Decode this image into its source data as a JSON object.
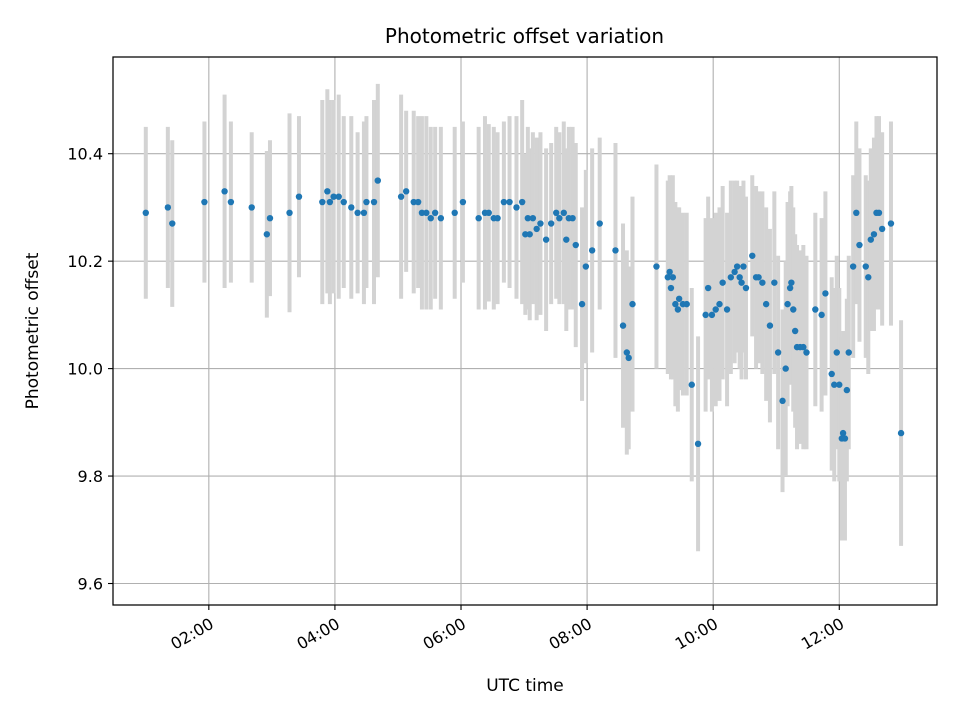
{
  "chart_data": {
    "type": "scatter",
    "title": "Photometric offset variation",
    "xlabel": "UTC time",
    "ylabel": "Photometric offset",
    "x_unit": "hours (UTC)",
    "xlim": [
      0.48,
      13.55
    ],
    "ylim": [
      9.56,
      10.58
    ],
    "x_ticks": [
      {
        "value": 2,
        "label": "02:00"
      },
      {
        "value": 4,
        "label": "04:00"
      },
      {
        "value": 6,
        "label": "06:00"
      },
      {
        "value": 8,
        "label": "08:00"
      },
      {
        "value": 10,
        "label": "10:00"
      },
      {
        "value": 12,
        "label": "12:00"
      }
    ],
    "y_ticks": [
      {
        "value": 9.6,
        "label": "9.6"
      },
      {
        "value": 9.8,
        "label": "9.8"
      },
      {
        "value": 10.0,
        "label": "10.0"
      },
      {
        "value": 10.2,
        "label": "10.2"
      },
      {
        "value": 10.4,
        "label": "10.4"
      }
    ],
    "grid": true,
    "marker_color": "#1f77b4",
    "errorbar_color": "#d3d3d3",
    "points": [
      [
        1.0,
        10.29,
        0.16
      ],
      [
        1.35,
        10.3,
        0.15
      ],
      [
        1.42,
        10.27,
        0.155
      ],
      [
        1.93,
        10.31,
        0.15
      ],
      [
        2.25,
        10.33,
        0.18
      ],
      [
        2.35,
        10.31,
        0.15
      ],
      [
        2.68,
        10.3,
        0.14
      ],
      [
        2.92,
        10.25,
        0.155
      ],
      [
        2.97,
        10.28,
        0.145
      ],
      [
        3.28,
        10.29,
        0.185
      ],
      [
        3.43,
        10.32,
        0.15
      ],
      [
        3.8,
        10.31,
        0.19
      ],
      [
        3.88,
        10.33,
        0.19
      ],
      [
        3.92,
        10.31,
        0.19
      ],
      [
        3.98,
        10.32,
        0.18
      ],
      [
        4.06,
        10.32,
        0.19
      ],
      [
        4.14,
        10.31,
        0.16
      ],
      [
        4.26,
        10.3,
        0.17
      ],
      [
        4.36,
        10.29,
        0.15
      ],
      [
        4.46,
        10.29,
        0.17
      ],
      [
        4.5,
        10.31,
        0.16
      ],
      [
        4.62,
        10.31,
        0.19
      ],
      [
        4.68,
        10.35,
        0.18
      ],
      [
        5.05,
        10.32,
        0.19
      ],
      [
        5.13,
        10.33,
        0.15
      ],
      [
        5.25,
        10.31,
        0.17
      ],
      [
        5.32,
        10.31,
        0.16
      ],
      [
        5.38,
        10.29,
        0.18
      ],
      [
        5.45,
        10.29,
        0.18
      ],
      [
        5.52,
        10.28,
        0.17
      ],
      [
        5.59,
        10.29,
        0.16
      ],
      [
        5.68,
        10.28,
        0.17
      ],
      [
        5.9,
        10.29,
        0.16
      ],
      [
        6.03,
        10.31,
        0.15
      ],
      [
        6.28,
        10.28,
        0.17
      ],
      [
        6.38,
        10.29,
        0.18
      ],
      [
        6.44,
        10.29,
        0.165
      ],
      [
        6.52,
        10.28,
        0.17
      ],
      [
        6.58,
        10.28,
        0.16
      ],
      [
        6.68,
        10.31,
        0.15
      ],
      [
        6.77,
        10.31,
        0.16
      ],
      [
        6.88,
        10.3,
        0.17
      ],
      [
        6.97,
        10.31,
        0.19
      ],
      [
        7.02,
        10.25,
        0.15
      ],
      [
        7.06,
        10.28,
        0.17
      ],
      [
        7.09,
        10.25,
        0.16
      ],
      [
        7.14,
        10.28,
        0.16
      ],
      [
        7.2,
        10.26,
        0.17
      ],
      [
        7.26,
        10.27,
        0.17
      ],
      [
        7.35,
        10.24,
        0.17
      ],
      [
        7.43,
        10.27,
        0.15
      ],
      [
        7.51,
        10.29,
        0.16
      ],
      [
        7.56,
        10.28,
        0.16
      ],
      [
        7.63,
        10.29,
        0.17
      ],
      [
        7.67,
        10.24,
        0.17
      ],
      [
        7.71,
        10.28,
        0.17
      ],
      [
        7.77,
        10.28,
        0.17
      ],
      [
        7.82,
        10.23,
        0.19
      ],
      [
        7.92,
        10.12,
        0.18
      ],
      [
        7.98,
        10.19,
        0.18
      ],
      [
        8.08,
        10.22,
        0.19
      ],
      [
        8.2,
        10.27,
        0.16
      ],
      [
        8.45,
        10.22,
        0.2
      ],
      [
        8.57,
        10.08,
        0.19
      ],
      [
        8.63,
        10.03,
        0.19
      ],
      [
        8.66,
        10.02,
        0.17
      ],
      [
        8.72,
        10.12,
        0.2
      ],
      [
        9.1,
        10.19,
        0.19
      ],
      [
        9.28,
        10.17,
        0.18
      ],
      [
        9.31,
        10.18,
        0.18
      ],
      [
        9.33,
        10.15,
        0.17
      ],
      [
        9.36,
        10.17,
        0.19
      ],
      [
        9.4,
        10.12,
        0.19
      ],
      [
        9.44,
        10.11,
        0.19
      ],
      [
        9.46,
        10.13,
        0.17
      ],
      [
        9.52,
        10.12,
        0.17
      ],
      [
        9.58,
        10.12,
        0.17
      ],
      [
        9.66,
        9.97,
        0.18
      ],
      [
        9.76,
        9.86,
        0.2
      ],
      [
        9.88,
        10.1,
        0.18
      ],
      [
        9.92,
        10.15,
        0.17
      ],
      [
        9.98,
        10.1,
        0.18
      ],
      [
        10.04,
        10.11,
        0.18
      ],
      [
        10.1,
        10.12,
        0.18
      ],
      [
        10.15,
        10.16,
        0.18
      ],
      [
        10.22,
        10.11,
        0.18
      ],
      [
        10.28,
        10.17,
        0.18
      ],
      [
        10.34,
        10.18,
        0.17
      ],
      [
        10.38,
        10.19,
        0.16
      ],
      [
        10.42,
        10.17,
        0.17
      ],
      [
        10.45,
        10.16,
        0.18
      ],
      [
        10.48,
        10.19,
        0.16
      ],
      [
        10.52,
        10.15,
        0.17
      ],
      [
        10.62,
        10.21,
        0.15
      ],
      [
        10.68,
        10.17,
        0.17
      ],
      [
        10.72,
        10.17,
        0.16
      ],
      [
        10.78,
        10.16,
        0.17
      ],
      [
        10.84,
        10.12,
        0.18
      ],
      [
        10.9,
        10.08,
        0.18
      ],
      [
        10.97,
        10.16,
        0.17
      ],
      [
        11.03,
        10.03,
        0.18
      ],
      [
        11.1,
        9.94,
        0.17
      ],
      [
        11.15,
        10.0,
        0.2
      ],
      [
        11.18,
        10.12,
        0.19
      ],
      [
        11.22,
        10.15,
        0.18
      ],
      [
        11.24,
        10.16,
        0.18
      ],
      [
        11.27,
        10.11,
        0.19
      ],
      [
        11.3,
        10.07,
        0.18
      ],
      [
        11.33,
        10.04,
        0.19
      ],
      [
        11.38,
        10.04,
        0.18
      ],
      [
        11.43,
        10.04,
        0.19
      ],
      [
        11.48,
        10.03,
        0.18
      ],
      [
        11.62,
        10.11,
        0.18
      ],
      [
        11.72,
        10.1,
        0.18
      ],
      [
        11.78,
        10.14,
        0.19
      ],
      [
        11.88,
        9.99,
        0.18
      ],
      [
        11.92,
        9.97,
        0.18
      ],
      [
        11.96,
        10.03,
        0.18
      ],
      [
        12.0,
        9.97,
        0.18
      ],
      [
        12.04,
        9.87,
        0.19
      ],
      [
        12.06,
        9.88,
        0.19
      ],
      [
        12.09,
        9.87,
        0.19
      ],
      [
        12.12,
        9.96,
        0.17
      ],
      [
        12.15,
        10.03,
        0.18
      ],
      [
        12.22,
        10.19,
        0.17
      ],
      [
        12.27,
        10.29,
        0.17
      ],
      [
        12.32,
        10.23,
        0.18
      ],
      [
        12.42,
        10.19,
        0.17
      ],
      [
        12.46,
        10.17,
        0.18
      ],
      [
        12.5,
        10.24,
        0.17
      ],
      [
        12.55,
        10.25,
        0.18
      ],
      [
        12.59,
        10.29,
        0.18
      ],
      [
        12.63,
        10.29,
        0.18
      ],
      [
        12.68,
        10.26,
        0.18
      ],
      [
        12.82,
        10.27,
        0.19
      ],
      [
        12.98,
        9.88,
        0.21
      ]
    ]
  }
}
